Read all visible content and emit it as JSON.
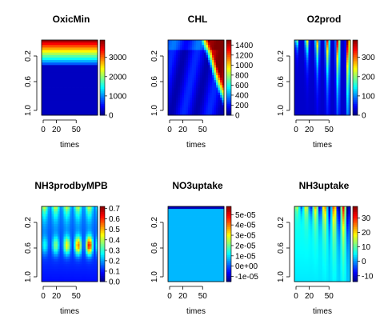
{
  "chart_data": [
    {
      "type": "heatmap",
      "title": "OxicMin",
      "xlabel": "times",
      "x_ticks": [
        0,
        20,
        50
      ],
      "y_ticks": [
        "0.2",
        "0.6",
        "1.0"
      ],
      "xlim": [
        0,
        80
      ],
      "ylim": [
        0,
        1.0
      ],
      "y_reversed": true,
      "legend": {
        "ticks": [
          "3000",
          "2000",
          "1000",
          "0"
        ],
        "values": [
          3000,
          2000,
          1000,
          0
        ],
        "range": [
          0,
          3900
        ]
      },
      "pattern": "layers"
    },
    {
      "type": "heatmap",
      "title": "CHL",
      "xlabel": "times",
      "x_ticks": [
        0,
        20,
        50
      ],
      "y_ticks": [
        "0.2",
        "0.6",
        "1.0"
      ],
      "xlim": [
        0,
        80
      ],
      "ylim": [
        0,
        1.0
      ],
      "y_reversed": true,
      "legend": {
        "ticks": [
          "1400",
          "1200",
          "1000",
          "800",
          "600",
          "400",
          "200",
          "0"
        ],
        "values": [
          1400,
          1200,
          1000,
          800,
          600,
          400,
          200,
          0
        ],
        "range": [
          0,
          1500
        ]
      },
      "pattern": "growth"
    },
    {
      "type": "heatmap",
      "title": "O2prod",
      "xlabel": "times",
      "x_ticks": [
        0,
        20,
        50
      ],
      "y_ticks": [
        "0.2",
        "0.6",
        "1.0"
      ],
      "xlim": [
        0,
        80
      ],
      "ylim": [
        0,
        1.0
      ],
      "y_reversed": true,
      "legend": {
        "ticks": [
          "300",
          "200",
          "100",
          "0"
        ],
        "values": [
          300,
          200,
          100,
          0
        ],
        "range": [
          0,
          390
        ]
      },
      "pattern": "pulses"
    },
    {
      "type": "heatmap",
      "title": "NH3prodbyMPB",
      "xlabel": "times",
      "x_ticks": [
        0,
        20,
        50
      ],
      "y_ticks": [
        "0.2",
        "0.6",
        "1.0"
      ],
      "xlim": [
        0,
        80
      ],
      "ylim": [
        0,
        1.0
      ],
      "y_reversed": true,
      "legend": {
        "ticks": [
          "0.7",
          "0.6",
          "0.5",
          "0.4",
          "0.3",
          "0.2",
          "0.1",
          "0.0"
        ],
        "values": [
          0.7,
          0.6,
          0.5,
          0.4,
          0.3,
          0.2,
          0.1,
          0.0
        ],
        "range": [
          0,
          0.72
        ]
      },
      "pattern": "waves"
    },
    {
      "type": "heatmap",
      "title": "NO3uptake",
      "xlabel": "times",
      "x_ticks": [
        0,
        20,
        50
      ],
      "y_ticks": [
        "0.2",
        "0.6",
        "1.0"
      ],
      "xlim": [
        0,
        80
      ],
      "ylim": [
        0,
        1.0
      ],
      "y_reversed": true,
      "legend": {
        "ticks": [
          "5e-05",
          "4e-05",
          "3e-05",
          "2e-05",
          "1e-05",
          "0e+00",
          "-1e-05"
        ],
        "values": [
          5e-05,
          4e-05,
          3e-05,
          2e-05,
          1e-05,
          0,
          -1e-05
        ],
        "range": [
          -1.5e-05,
          5.8e-05
        ]
      },
      "pattern": "flat"
    },
    {
      "type": "heatmap",
      "title": "NH3uptake",
      "xlabel": "times",
      "x_ticks": [
        0,
        20,
        50
      ],
      "y_ticks": [
        "0.2",
        "0.6",
        "1.0"
      ],
      "xlim": [
        0,
        80
      ],
      "ylim": [
        0,
        1.0
      ],
      "y_reversed": true,
      "legend": {
        "ticks": [
          "30",
          "20",
          "10",
          "0",
          "-10"
        ],
        "values": [
          30,
          20,
          10,
          0,
          -10
        ],
        "range": [
          -14,
          38
        ]
      },
      "pattern": "uptake"
    }
  ]
}
